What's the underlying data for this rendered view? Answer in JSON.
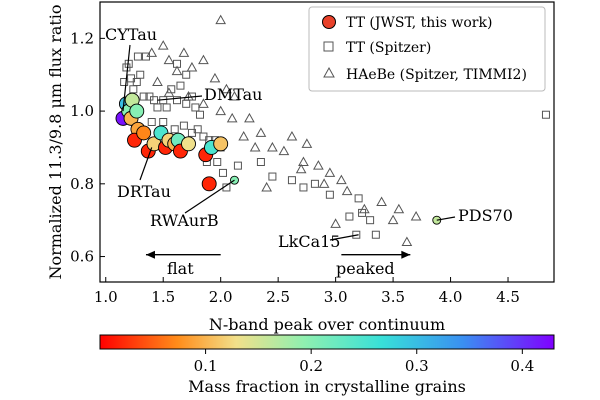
{
  "chart_data": {
    "type": "scatter",
    "xlabel": "N-band peak over continuum",
    "ylabel": "Normalized 11.3/9.8 μm flux ratio",
    "xlim": [
      0.95,
      4.9
    ],
    "ylim": [
      0.53,
      1.3
    ],
    "xticks": [
      "1.0",
      "1.5",
      "2.0",
      "2.5",
      "3.0",
      "3.5",
      "4.0",
      "4.5"
    ],
    "yticks": [
      "0.6",
      "0.8",
      "1.0",
      "1.2"
    ],
    "grid": false,
    "legend_position": "top-right",
    "legend": [
      {
        "label": "TT (JWST, this work)",
        "marker": "circle-filled"
      },
      {
        "label": "TT (Spitzer)",
        "marker": "square-open"
      },
      {
        "label": "HAeBe (Spitzer, TIMMI2)",
        "marker": "triangle-open"
      }
    ],
    "colorbar": {
      "label": "Mass fraction in crystalline grains",
      "range": [
        0.0,
        0.43
      ],
      "ticks": [
        "0.1",
        "0.2",
        "0.3",
        "0.4"
      ],
      "colormap": "rainbow (red → purple)"
    },
    "series": [
      {
        "name": "TT (JWST, this work)",
        "marker": "circle",
        "points": [
          {
            "x": 1.18,
            "y": 1.02,
            "c": 0.3
          },
          {
            "x": 1.15,
            "y": 0.98,
            "c": 0.42
          },
          {
            "x": 1.2,
            "y": 1.0,
            "c": 0.2
          },
          {
            "x": 1.22,
            "y": 0.98,
            "c": 0.1
          },
          {
            "x": 1.23,
            "y": 1.03,
            "c": 0.16
          },
          {
            "x": 1.27,
            "y": 1.0,
            "c": 0.2
          },
          {
            "x": 1.28,
            "y": 0.95,
            "c": 0.09
          },
          {
            "x": 1.25,
            "y": 0.92,
            "c": 0.02
          },
          {
            "x": 1.33,
            "y": 0.94,
            "c": 0.07
          },
          {
            "x": 1.37,
            "y": 0.89,
            "c": 0.02
          },
          {
            "x": 1.42,
            "y": 0.91,
            "c": 0.12
          },
          {
            "x": 1.48,
            "y": 0.94,
            "c": 0.25
          },
          {
            "x": 1.52,
            "y": 0.9,
            "c": 0.02
          },
          {
            "x": 1.55,
            "y": 0.92,
            "c": 0.12
          },
          {
            "x": 1.6,
            "y": 0.91,
            "c": 0.1
          },
          {
            "x": 1.63,
            "y": 0.92,
            "c": 0.22
          },
          {
            "x": 1.65,
            "y": 0.89,
            "c": 0.02
          },
          {
            "x": 1.72,
            "y": 0.91,
            "c": 0.13
          },
          {
            "x": 1.87,
            "y": 0.88,
            "c": 0.02
          },
          {
            "x": 1.92,
            "y": 0.9,
            "c": 0.25
          },
          {
            "x": 2.0,
            "y": 0.91,
            "c": 0.11
          },
          {
            "x": 1.9,
            "y": 0.8,
            "c": 0.02
          },
          {
            "x": 2.12,
            "y": 0.81,
            "c": 0.2
          },
          {
            "x": 3.88,
            "y": 0.7,
            "c": 0.16
          }
        ]
      },
      {
        "name": "TT (Spitzer)",
        "marker": "square",
        "points": [
          {
            "x": 1.16,
            "y": 1.08
          },
          {
            "x": 1.18,
            "y": 1.12
          },
          {
            "x": 1.2,
            "y": 1.13
          },
          {
            "x": 1.22,
            "y": 1.09
          },
          {
            "x": 1.24,
            "y": 1.06
          },
          {
            "x": 1.27,
            "y": 1.08
          },
          {
            "x": 1.3,
            "y": 1.1
          },
          {
            "x": 1.33,
            "y": 1.04
          },
          {
            "x": 1.38,
            "y": 1.04
          },
          {
            "x": 1.42,
            "y": 1.03
          },
          {
            "x": 1.45,
            "y": 1.01
          },
          {
            "x": 1.5,
            "y": 1.03
          },
          {
            "x": 1.53,
            "y": 1.01
          },
          {
            "x": 1.57,
            "y": 1.06
          },
          {
            "x": 1.62,
            "y": 1.03
          },
          {
            "x": 1.65,
            "y": 1.07
          },
          {
            "x": 1.7,
            "y": 1.02
          },
          {
            "x": 1.75,
            "y": 1.04
          },
          {
            "x": 1.78,
            "y": 1.01
          },
          {
            "x": 1.82,
            "y": 0.99
          },
          {
            "x": 1.4,
            "y": 0.97
          },
          {
            "x": 1.5,
            "y": 0.97
          },
          {
            "x": 1.6,
            "y": 0.95
          },
          {
            "x": 1.68,
            "y": 0.96
          },
          {
            "x": 1.75,
            "y": 0.94
          },
          {
            "x": 1.8,
            "y": 0.95
          },
          {
            "x": 1.85,
            "y": 0.93
          },
          {
            "x": 1.9,
            "y": 0.92
          },
          {
            "x": 1.95,
            "y": 0.92
          },
          {
            "x": 2.0,
            "y": 0.9
          },
          {
            "x": 1.88,
            "y": 0.86
          },
          {
            "x": 1.97,
            "y": 0.86
          },
          {
            "x": 2.02,
            "y": 0.83
          },
          {
            "x": 1.62,
            "y": 1.13
          },
          {
            "x": 1.7,
            "y": 1.1
          },
          {
            "x": 1.28,
            "y": 1.15
          },
          {
            "x": 1.35,
            "y": 1.15
          },
          {
            "x": 2.05,
            "y": 0.79
          },
          {
            "x": 2.15,
            "y": 0.85
          },
          {
            "x": 2.35,
            "y": 0.86
          },
          {
            "x": 2.45,
            "y": 0.82
          },
          {
            "x": 2.62,
            "y": 0.81
          },
          {
            "x": 2.72,
            "y": 0.79
          },
          {
            "x": 2.82,
            "y": 0.8
          },
          {
            "x": 2.95,
            "y": 0.77
          },
          {
            "x": 3.12,
            "y": 0.71
          },
          {
            "x": 3.2,
            "y": 0.76
          },
          {
            "x": 3.23,
            "y": 0.72
          },
          {
            "x": 3.3,
            "y": 0.7
          },
          {
            "x": 3.35,
            "y": 0.66
          },
          {
            "x": 3.18,
            "y": 0.66
          },
          {
            "x": 4.83,
            "y": 0.99
          }
        ]
      },
      {
        "name": "HAeBe (Spitzer, TIMMI2)",
        "marker": "triangle",
        "points": [
          {
            "x": 1.4,
            "y": 1.16
          },
          {
            "x": 1.5,
            "y": 1.18
          },
          {
            "x": 1.55,
            "y": 1.14
          },
          {
            "x": 1.62,
            "y": 1.11
          },
          {
            "x": 1.68,
            "y": 1.16
          },
          {
            "x": 1.75,
            "y": 1.12
          },
          {
            "x": 1.85,
            "y": 1.14
          },
          {
            "x": 1.95,
            "y": 1.09
          },
          {
            "x": 2.05,
            "y": 1.06
          },
          {
            "x": 2.12,
            "y": 1.04
          },
          {
            "x": 1.45,
            "y": 1.08
          },
          {
            "x": 1.55,
            "y": 1.05
          },
          {
            "x": 1.72,
            "y": 1.04
          },
          {
            "x": 1.85,
            "y": 1.02
          },
          {
            "x": 2.0,
            "y": 1.0
          },
          {
            "x": 2.1,
            "y": 0.98
          },
          {
            "x": 2.25,
            "y": 0.98
          },
          {
            "x": 2.2,
            "y": 0.93
          },
          {
            "x": 2.35,
            "y": 0.94
          },
          {
            "x": 2.45,
            "y": 0.9
          },
          {
            "x": 2.55,
            "y": 0.89
          },
          {
            "x": 2.3,
            "y": 0.9
          },
          {
            "x": 2.62,
            "y": 0.93
          },
          {
            "x": 2.72,
            "y": 0.86
          },
          {
            "x": 2.75,
            "y": 0.91
          },
          {
            "x": 2.85,
            "y": 0.85
          },
          {
            "x": 2.95,
            "y": 0.83
          },
          {
            "x": 3.05,
            "y": 0.81
          },
          {
            "x": 2.9,
            "y": 0.8
          },
          {
            "x": 3.1,
            "y": 0.78
          },
          {
            "x": 3.25,
            "y": 0.73
          },
          {
            "x": 3.4,
            "y": 0.75
          },
          {
            "x": 3.55,
            "y": 0.73
          },
          {
            "x": 3.7,
            "y": 0.71
          },
          {
            "x": 3.0,
            "y": 0.69
          },
          {
            "x": 3.5,
            "y": 0.7
          },
          {
            "x": 3.62,
            "y": 0.64
          },
          {
            "x": 2.0,
            "y": 1.25
          },
          {
            "x": 2.7,
            "y": 0.84
          },
          {
            "x": 2.4,
            "y": 0.79
          }
        ]
      }
    ],
    "annotations": [
      {
        "text": "CYTau",
        "x": 1.15,
        "y": 1.0
      },
      {
        "text": "DMTau",
        "x": 1.45,
        "y": 1.03
      },
      {
        "text": "DRTau",
        "x": 1.4,
        "y": 0.9
      },
      {
        "text": "RWAurB",
        "x": 2.12,
        "y": 0.81
      },
      {
        "text": "LkCa15",
        "x": 3.2,
        "y": 0.66
      },
      {
        "text": "PDS70",
        "x": 3.88,
        "y": 0.7
      }
    ],
    "arrows": [
      {
        "text": "flat",
        "from_x": 2.0,
        "to_x": 1.35,
        "y": 0.605
      },
      {
        "text": "peaked",
        "from_x": 3.05,
        "to_x": 3.65,
        "y": 0.605
      }
    ]
  }
}
